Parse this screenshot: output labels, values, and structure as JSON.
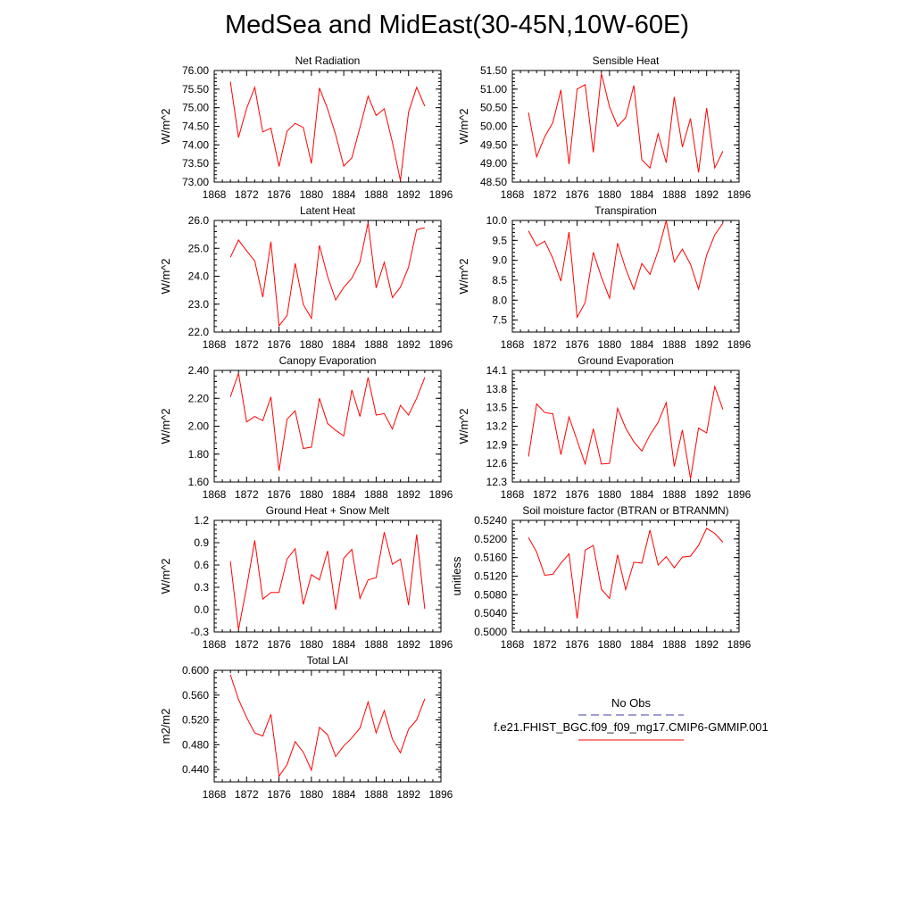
{
  "title": "MedSea and MidEast(30-45N,10W-60E)",
  "legend": {
    "entries": [
      {
        "label": "No Obs",
        "color": "#3f3faa",
        "style": "dashed"
      },
      {
        "label": "f.e21.FHIST_BGC.f09_f09_mg17.CMIP6-GMMIP.001",
        "color": "#ff0000",
        "style": "solid"
      }
    ]
  },
  "chart_data": [
    {
      "type": "line",
      "title": "Net Radiation",
      "ylabel": "W/m^2",
      "xlim": [
        1868,
        1896
      ],
      "xticks": [
        1868,
        1872,
        1876,
        1880,
        1884,
        1888,
        1892,
        1896
      ],
      "ylim": [
        73.0,
        76.0
      ],
      "yticks": [
        "73.00",
        "73.50",
        "74.00",
        "74.50",
        "75.00",
        "75.50",
        "76.00"
      ],
      "color": "#ff0000",
      "x": [
        1870,
        1871,
        1872,
        1873,
        1874,
        1875,
        1876,
        1877,
        1878,
        1879,
        1880,
        1881,
        1882,
        1883,
        1884,
        1885,
        1886,
        1887,
        1888,
        1889,
        1890,
        1891,
        1892,
        1893,
        1894
      ],
      "values": [
        75.7,
        74.2,
        74.98,
        75.55,
        74.35,
        74.45,
        73.42,
        74.37,
        74.58,
        74.47,
        73.5,
        75.53,
        74.97,
        74.27,
        73.43,
        73.65,
        74.47,
        75.31,
        74.79,
        74.97,
        74.07,
        73.04,
        74.88,
        75.55,
        75.04
      ]
    },
    {
      "type": "line",
      "title": "Sensible Heat",
      "ylabel": "W/m^2",
      "xlim": [
        1868,
        1896
      ],
      "xticks": [
        1868,
        1872,
        1876,
        1880,
        1884,
        1888,
        1892,
        1896
      ],
      "ylim": [
        48.5,
        51.5
      ],
      "yticks": [
        "48.50",
        "49.00",
        "49.50",
        "50.00",
        "50.50",
        "51.00",
        "51.50"
      ],
      "color": "#ff0000",
      "x": [
        1870,
        1871,
        1872,
        1873,
        1874,
        1875,
        1876,
        1877,
        1878,
        1879,
        1880,
        1881,
        1882,
        1883,
        1884,
        1885,
        1886,
        1887,
        1888,
        1889,
        1890,
        1891,
        1892,
        1893,
        1894
      ],
      "values": [
        50.37,
        49.18,
        49.72,
        50.1,
        50.98,
        48.98,
        51.0,
        51.12,
        49.3,
        51.42,
        50.52,
        50.0,
        50.23,
        51.1,
        49.1,
        48.88,
        49.8,
        49.02,
        50.79,
        49.44,
        50.21,
        48.76,
        50.49,
        48.88,
        49.33
      ]
    },
    {
      "type": "line",
      "title": "Latent Heat",
      "ylabel": "W/m^2",
      "xlim": [
        1868,
        1896
      ],
      "xticks": [
        1868,
        1872,
        1876,
        1880,
        1884,
        1888,
        1892,
        1896
      ],
      "ylim": [
        22.0,
        26.0
      ],
      "yticks": [
        "22.0",
        "23.0",
        "24.0",
        "25.0",
        "26.0"
      ],
      "color": "#ff0000",
      "x": [
        1870,
        1871,
        1872,
        1873,
        1874,
        1875,
        1876,
        1877,
        1878,
        1879,
        1880,
        1881,
        1882,
        1883,
        1884,
        1885,
        1886,
        1887,
        1888,
        1889,
        1890,
        1891,
        1892,
        1893,
        1894
      ],
      "values": [
        24.68,
        25.3,
        24.91,
        24.55,
        23.25,
        25.24,
        22.22,
        22.59,
        24.46,
        22.99,
        22.49,
        25.11,
        24.0,
        23.15,
        23.6,
        23.93,
        24.52,
        25.92,
        23.58,
        24.5,
        23.24,
        23.61,
        24.32,
        25.67,
        25.74
      ]
    },
    {
      "type": "line",
      "title": "Transpiration",
      "ylabel": "W/m^2",
      "xlim": [
        1868,
        1896
      ],
      "xticks": [
        1868,
        1872,
        1876,
        1880,
        1884,
        1888,
        1892,
        1896
      ],
      "ylim": [
        7.2,
        10.0
      ],
      "yticks": [
        "7.5",
        "8.0",
        "8.5",
        "9.0",
        "9.5",
        "10.0"
      ],
      "ytick_values": [
        7.5,
        8.0,
        8.5,
        9.0,
        9.5,
        10.0
      ],
      "color": "#ff0000",
      "x": [
        1870,
        1871,
        1872,
        1873,
        1874,
        1875,
        1876,
        1877,
        1878,
        1879,
        1880,
        1881,
        1882,
        1883,
        1884,
        1885,
        1886,
        1887,
        1888,
        1889,
        1890,
        1891,
        1892,
        1893,
        1894
      ],
      "values": [
        9.74,
        9.36,
        9.48,
        9.05,
        8.48,
        9.71,
        7.57,
        7.94,
        9.2,
        8.58,
        8.05,
        9.43,
        8.79,
        8.27,
        8.92,
        8.65,
        9.23,
        9.99,
        8.96,
        9.28,
        8.9,
        8.28,
        9.13,
        9.64,
        9.93
      ]
    },
    {
      "type": "line",
      "title": "Canopy Evaporation",
      "ylabel": "W/m^2",
      "xlim": [
        1868,
        1896
      ],
      "xticks": [
        1868,
        1872,
        1876,
        1880,
        1884,
        1888,
        1892,
        1896
      ],
      "ylim": [
        1.6,
        2.4
      ],
      "yticks": [
        "1.60",
        "1.80",
        "2.00",
        "2.20",
        "2.40"
      ],
      "color": "#ff0000",
      "x": [
        1870,
        1871,
        1872,
        1873,
        1874,
        1875,
        1876,
        1877,
        1878,
        1879,
        1880,
        1881,
        1882,
        1883,
        1884,
        1885,
        1886,
        1887,
        1888,
        1889,
        1890,
        1891,
        1892,
        1893,
        1894
      ],
      "values": [
        2.21,
        2.38,
        2.03,
        2.07,
        2.04,
        2.21,
        1.68,
        2.05,
        2.11,
        1.84,
        1.85,
        2.2,
        2.02,
        1.97,
        1.93,
        2.26,
        2.07,
        2.35,
        2.08,
        2.09,
        1.98,
        2.15,
        2.08,
        2.2,
        2.35
      ]
    },
    {
      "type": "line",
      "title": "Ground Evaporation",
      "ylabel": "W/m^2",
      "xlim": [
        1868,
        1896
      ],
      "xticks": [
        1868,
        1872,
        1876,
        1880,
        1884,
        1888,
        1892,
        1896
      ],
      "ylim": [
        12.3,
        14.1
      ],
      "yticks": [
        "12.3",
        "12.6",
        "12.9",
        "13.2",
        "13.5",
        "13.8",
        "14.1"
      ],
      "color": "#ff0000",
      "x": [
        1870,
        1871,
        1872,
        1873,
        1874,
        1875,
        1876,
        1877,
        1878,
        1879,
        1880,
        1881,
        1882,
        1883,
        1884,
        1885,
        1886,
        1887,
        1888,
        1889,
        1890,
        1891,
        1892,
        1893,
        1894
      ],
      "values": [
        12.71,
        13.56,
        13.42,
        13.4,
        12.74,
        13.35,
        12.97,
        12.59,
        13.16,
        12.59,
        12.6,
        13.49,
        13.17,
        12.95,
        12.8,
        13.06,
        13.26,
        13.58,
        12.55,
        13.14,
        12.35,
        13.17,
        13.09,
        13.84,
        13.47
      ]
    },
    {
      "type": "line",
      "title": "Ground Heat + Snow Melt",
      "ylabel": "W/m^2",
      "xlim": [
        1868,
        1896
      ],
      "xticks": [
        1868,
        1872,
        1876,
        1880,
        1884,
        1888,
        1892,
        1896
      ],
      "ylim": [
        -0.3,
        1.2
      ],
      "yticks": [
        "-0.3",
        "0.0",
        "0.3",
        "0.6",
        "0.9",
        "1.2"
      ],
      "color": "#ff0000",
      "x": [
        1870,
        1871,
        1872,
        1873,
        1874,
        1875,
        1876,
        1877,
        1878,
        1879,
        1880,
        1881,
        1882,
        1883,
        1884,
        1885,
        1886,
        1887,
        1888,
        1889,
        1890,
        1891,
        1892,
        1893,
        1894
      ],
      "values": [
        0.65,
        -0.27,
        0.3,
        0.93,
        0.14,
        0.23,
        0.23,
        0.68,
        0.82,
        0.07,
        0.47,
        0.4,
        0.79,
        0.0,
        0.69,
        0.81,
        0.15,
        0.4,
        0.43,
        1.04,
        0.61,
        0.68,
        0.06,
        1.01,
        0.01
      ]
    },
    {
      "type": "line",
      "title": "Soil moisture factor (BTRAN or BTRANMN)",
      "ylabel": "unitless",
      "xlim": [
        1868,
        1896
      ],
      "xticks": [
        1868,
        1872,
        1876,
        1880,
        1884,
        1888,
        1892,
        1896
      ],
      "ylim": [
        0.5,
        0.524
      ],
      "yticks": [
        "0.5000",
        "0.5040",
        "0.5080",
        "0.5120",
        "0.5160",
        "0.5200",
        "0.5240"
      ],
      "color": "#ff0000",
      "x": [
        1870,
        1871,
        1872,
        1873,
        1874,
        1875,
        1876,
        1877,
        1878,
        1879,
        1880,
        1881,
        1882,
        1883,
        1884,
        1885,
        1886,
        1887,
        1888,
        1889,
        1890,
        1891,
        1892,
        1893,
        1894
      ],
      "values": [
        0.5203,
        0.5172,
        0.5122,
        0.5124,
        0.5148,
        0.5168,
        0.5029,
        0.5176,
        0.5186,
        0.5092,
        0.5072,
        0.5166,
        0.5091,
        0.515,
        0.5148,
        0.5219,
        0.5144,
        0.5162,
        0.5138,
        0.5161,
        0.5163,
        0.5186,
        0.5223,
        0.5212,
        0.5193
      ]
    },
    {
      "type": "line",
      "title": "Total LAI",
      "ylabel": "m2/m2",
      "xlim": [
        1868,
        1896
      ],
      "xticks": [
        1868,
        1872,
        1876,
        1880,
        1884,
        1888,
        1892,
        1896
      ],
      "ylim": [
        0.42,
        0.6
      ],
      "yticks": [
        "0.440",
        "0.480",
        "0.520",
        "0.560",
        "0.600"
      ],
      "ytick_values": [
        0.44,
        0.48,
        0.52,
        0.56,
        0.6
      ],
      "color": "#ff0000",
      "x": [
        1870,
        1871,
        1872,
        1873,
        1874,
        1875,
        1876,
        1877,
        1878,
        1879,
        1880,
        1881,
        1882,
        1883,
        1884,
        1885,
        1886,
        1887,
        1888,
        1889,
        1890,
        1891,
        1892,
        1893,
        1894
      ],
      "values": [
        0.593,
        0.553,
        0.524,
        0.499,
        0.494,
        0.529,
        0.429,
        0.448,
        0.485,
        0.468,
        0.439,
        0.508,
        0.496,
        0.461,
        0.478,
        0.491,
        0.507,
        0.549,
        0.499,
        0.535,
        0.489,
        0.467,
        0.505,
        0.52,
        0.554
      ]
    }
  ]
}
